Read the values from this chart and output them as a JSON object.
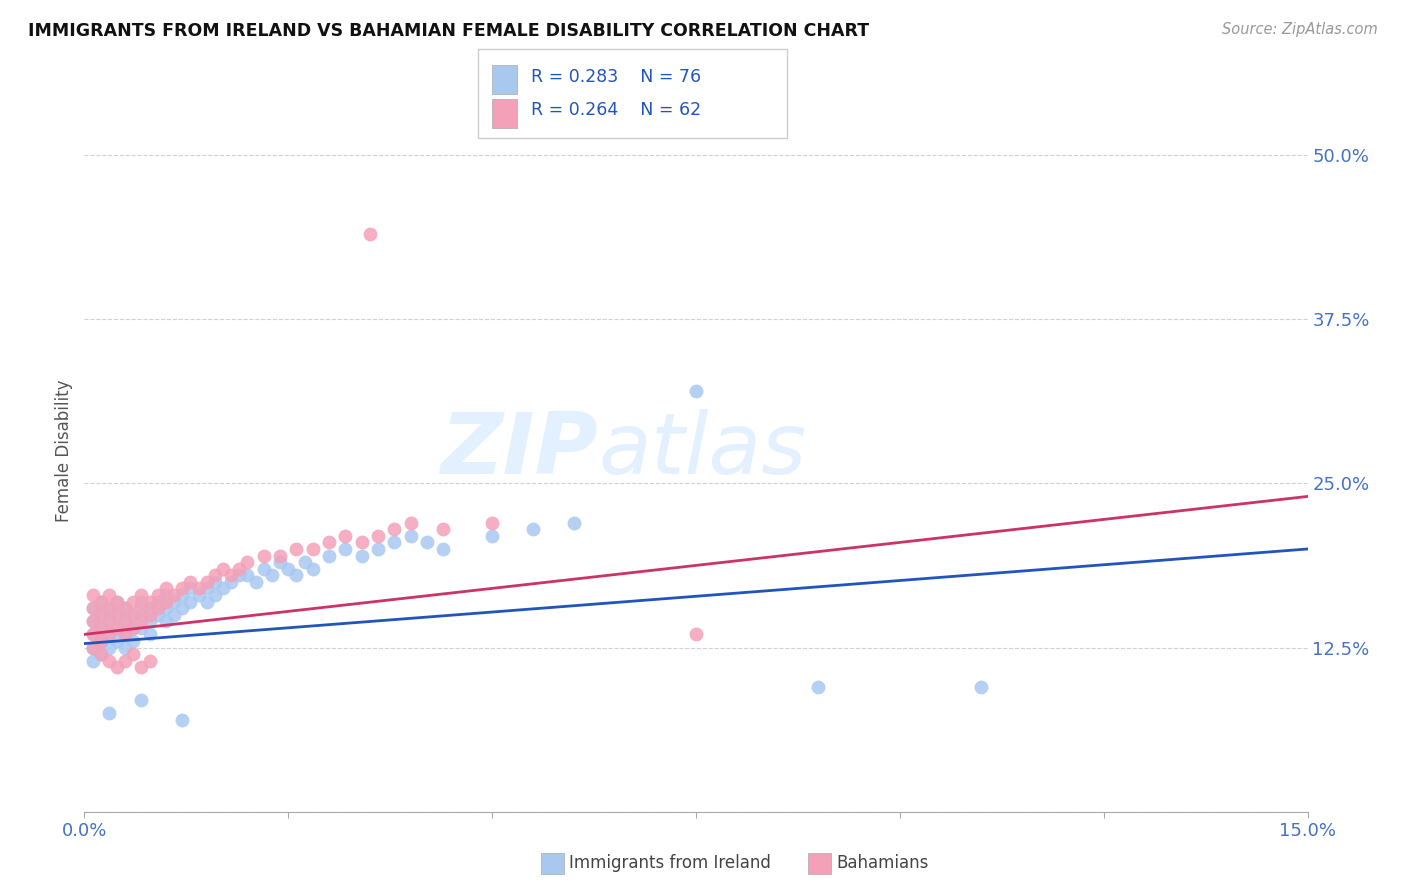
{
  "title": "IMMIGRANTS FROM IRELAND VS BAHAMIAN FEMALE DISABILITY CORRELATION CHART",
  "source": "Source: ZipAtlas.com",
  "ylabel": "Female Disability",
  "xlim": [
    0.0,
    0.15
  ],
  "ylim": [
    0.0,
    0.55
  ],
  "color_ireland": "#A8C8F0",
  "color_bahamians": "#F4A0B8",
  "trendline_color_ireland": "#2255BB",
  "trendline_color_bahamians": "#CC3366",
  "watermark_zip": "ZIP",
  "watermark_atlas": "atlas",
  "background_color": "#FFFFFF",
  "ireland_x": [
    0.001,
    0.001,
    0.001,
    0.001,
    0.001,
    0.002,
    0.002,
    0.002,
    0.002,
    0.002,
    0.003,
    0.003,
    0.003,
    0.003,
    0.004,
    0.004,
    0.004,
    0.004,
    0.005,
    0.005,
    0.005,
    0.005,
    0.006,
    0.006,
    0.006,
    0.007,
    0.007,
    0.007,
    0.008,
    0.008,
    0.008,
    0.009,
    0.009,
    0.01,
    0.01,
    0.01,
    0.011,
    0.011,
    0.012,
    0.012,
    0.013,
    0.013,
    0.014,
    0.015,
    0.015,
    0.016,
    0.016,
    0.017,
    0.018,
    0.019,
    0.02,
    0.021,
    0.022,
    0.023,
    0.024,
    0.025,
    0.026,
    0.027,
    0.028,
    0.03,
    0.032,
    0.034,
    0.036,
    0.038,
    0.04,
    0.042,
    0.044,
    0.05,
    0.055,
    0.06,
    0.075,
    0.09,
    0.11,
    0.003,
    0.007,
    0.012
  ],
  "ireland_y": [
    0.135,
    0.145,
    0.155,
    0.125,
    0.115,
    0.14,
    0.15,
    0.13,
    0.12,
    0.16,
    0.145,
    0.135,
    0.155,
    0.125,
    0.15,
    0.14,
    0.13,
    0.16,
    0.145,
    0.135,
    0.155,
    0.125,
    0.15,
    0.14,
    0.13,
    0.16,
    0.15,
    0.14,
    0.155,
    0.145,
    0.135,
    0.16,
    0.15,
    0.155,
    0.145,
    0.165,
    0.16,
    0.15,
    0.165,
    0.155,
    0.16,
    0.17,
    0.165,
    0.17,
    0.16,
    0.175,
    0.165,
    0.17,
    0.175,
    0.18,
    0.18,
    0.175,
    0.185,
    0.18,
    0.19,
    0.185,
    0.18,
    0.19,
    0.185,
    0.195,
    0.2,
    0.195,
    0.2,
    0.205,
    0.21,
    0.205,
    0.2,
    0.21,
    0.215,
    0.22,
    0.32,
    0.095,
    0.095,
    0.075,
    0.085,
    0.07
  ],
  "bahamians_x": [
    0.001,
    0.001,
    0.001,
    0.001,
    0.002,
    0.002,
    0.002,
    0.002,
    0.003,
    0.003,
    0.003,
    0.003,
    0.004,
    0.004,
    0.004,
    0.005,
    0.005,
    0.005,
    0.006,
    0.006,
    0.006,
    0.007,
    0.007,
    0.007,
    0.008,
    0.008,
    0.009,
    0.009,
    0.01,
    0.01,
    0.011,
    0.012,
    0.013,
    0.014,
    0.015,
    0.016,
    0.017,
    0.018,
    0.019,
    0.02,
    0.022,
    0.024,
    0.026,
    0.028,
    0.03,
    0.032,
    0.034,
    0.036,
    0.038,
    0.04,
    0.044,
    0.05,
    0.001,
    0.002,
    0.003,
    0.004,
    0.005,
    0.006,
    0.007,
    0.008,
    0.035,
    0.075
  ],
  "bahamians_y": [
    0.145,
    0.155,
    0.135,
    0.165,
    0.15,
    0.14,
    0.13,
    0.16,
    0.155,
    0.145,
    0.135,
    0.165,
    0.15,
    0.14,
    0.16,
    0.145,
    0.155,
    0.135,
    0.15,
    0.16,
    0.14,
    0.155,
    0.165,
    0.145,
    0.16,
    0.15,
    0.165,
    0.155,
    0.17,
    0.16,
    0.165,
    0.17,
    0.175,
    0.17,
    0.175,
    0.18,
    0.185,
    0.18,
    0.185,
    0.19,
    0.195,
    0.195,
    0.2,
    0.2,
    0.205,
    0.21,
    0.205,
    0.21,
    0.215,
    0.22,
    0.215,
    0.22,
    0.125,
    0.12,
    0.115,
    0.11,
    0.115,
    0.12,
    0.11,
    0.115,
    0.44,
    0.135
  ],
  "trendline_ireland": [
    0.128,
    0.2
  ],
  "trendline_bahamians": [
    0.135,
    0.24
  ]
}
